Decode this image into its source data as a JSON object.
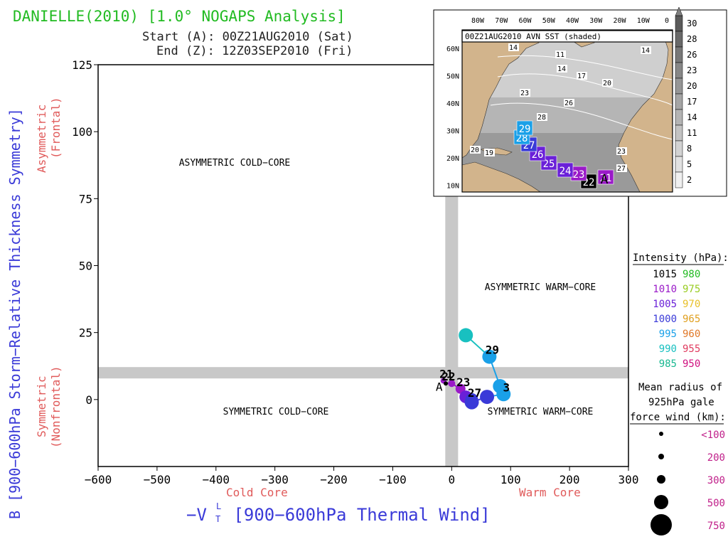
{
  "header": {
    "title": "DANIELLE(2010) [1.0° NOGAPS Analysis]",
    "start": "Start (A): 00Z21AUG2010 (Sat)",
    "end": "End (Z): 12Z03SEP2010 (Fri)"
  },
  "axes": {
    "xlabel": "−V",
    "xlabel_super": "L",
    "xlabel_sub": "T",
    "xlabel_rest": " [900−600hPa Thermal Wind]",
    "ylabel": "B [900−600hPa Storm−Relative Thickness Symmetry]",
    "x_left_note": "Cold Core",
    "x_right_note": "Warm Core",
    "y_top_note_1": "Asymmetric",
    "y_top_note_2": "(Frontal)",
    "y_bot_note_1": "Symmetric",
    "y_bot_note_2": "(Nonfrontal)"
  },
  "quadrants": {
    "asym_cold": "ASYMMETRIC COLD−CORE",
    "asym_warm": "ASYMMETRIC WARM−CORE",
    "sym_cold": "SYMMETRIC COLD−CORE",
    "sym_warm": "SYMMETRIC WARM−CORE"
  },
  "intensity_legend": {
    "title": "Intensity (hPa):",
    "rows": [
      [
        {
          "v": "1015",
          "c": "#000000"
        },
        {
          "v": "980",
          "c": "#22bb22"
        }
      ],
      [
        {
          "v": "1010",
          "c": "#9a1ac8"
        },
        {
          "v": "975",
          "c": "#99cc22"
        }
      ],
      [
        {
          "v": "1005",
          "c": "#6a20d8"
        },
        {
          "v": "970",
          "c": "#e8c028"
        }
      ],
      [
        {
          "v": "1000",
          "c": "#3a3ad8"
        },
        {
          "v": "965",
          "c": "#e0a020"
        }
      ],
      [
        {
          "v": "995",
          "c": "#1aa0e8"
        },
        {
          "v": "960",
          "c": "#e07828"
        }
      ],
      [
        {
          "v": "990",
          "c": "#18c0c0"
        },
        {
          "v": "955",
          "c": "#e03c60"
        }
      ],
      [
        {
          "v": "985",
          "c": "#18b890"
        },
        {
          "v": "950",
          "c": "#d01080"
        }
      ]
    ]
  },
  "radius_legend": {
    "title_1": "Mean radius of",
    "title_2": "925hPa gale",
    "title_3": "force wind (km):",
    "items": [
      {
        "label": "<100",
        "r": 3
      },
      {
        "label": "200",
        "r": 4
      },
      {
        "label": "300",
        "r": 6
      },
      {
        "label": "500",
        "r": 10
      },
      {
        "label": "750",
        "r": 15
      }
    ]
  },
  "inset": {
    "title": "00Z21AUG2010 AVN SST (shaded)",
    "lon_labels": [
      "80W",
      "70W",
      "60W",
      "50W",
      "40W",
      "30W",
      "20W",
      "10W",
      "0"
    ],
    "lat_labels": [
      "60N",
      "50N",
      "40N",
      "30N",
      "20N",
      "10N"
    ],
    "sst_labels": [
      "30",
      "28",
      "26",
      "23",
      "20",
      "17",
      "14",
      "11",
      "8",
      "5",
      "2"
    ],
    "contour_labels": [
      "14",
      "11",
      "14",
      "14",
      "17",
      "20",
      "23",
      "26",
      "28",
      "23",
      "20",
      "27",
      "19"
    ],
    "track": [
      {
        "day": "21",
        "c": "#9a1ac8"
      },
      {
        "day": "22",
        "c": "#000000"
      },
      {
        "day": "23",
        "c": "#9a1ac8"
      },
      {
        "day": "24",
        "c": "#6a20d8"
      },
      {
        "day": "25",
        "c": "#6a20d8"
      },
      {
        "day": "26",
        "c": "#6a20d8"
      },
      {
        "day": "27",
        "c": "#3a3ad8"
      },
      {
        "day": "28",
        "c": "#1aa0e8"
      },
      {
        "day": "29",
        "c": "#1aa0e8"
      }
    ],
    "start_marker": "A"
  },
  "chart_data": {
    "type": "scatter",
    "xlim": [
      -600,
      300
    ],
    "ylim": [
      -25,
      125
    ],
    "xticks": [
      -600,
      -500,
      -400,
      -300,
      -200,
      -100,
      0,
      100,
      200,
      300
    ],
    "yticks": [
      0,
      25,
      50,
      75,
      100,
      125
    ],
    "xtick_labels": [
      "−600",
      "−500",
      "−400",
      "−300",
      "−200",
      "−100",
      "0",
      "100",
      "200",
      "300"
    ],
    "ytick_labels": [
      "0",
      "25",
      "50",
      "75",
      "100",
      "125"
    ],
    "threshold_x": 0,
    "threshold_y": 10,
    "track": [
      {
        "x": -14,
        "y": 7,
        "c": "#9a1ac8",
        "r": 4,
        "label": "21",
        "marker": "A"
      },
      {
        "x": -10,
        "y": 6,
        "c": "#000000",
        "r": 3,
        "label": "22"
      },
      {
        "x": 0,
        "y": 6,
        "c": "#9a1ac8",
        "r": 5,
        "label": ""
      },
      {
        "x": 15,
        "y": 4,
        "c": "#9a1ac8",
        "r": 7,
        "label": "23"
      },
      {
        "x": 24,
        "y": 1,
        "c": "#6a20d8",
        "r": 9,
        "label": ""
      },
      {
        "x": 34,
        "y": 0,
        "c": "#3a3ad8",
        "r": 9,
        "label": "27"
      },
      {
        "x": 34,
        "y": -1,
        "c": "#3a3ad8",
        "r": 10,
        "label": ""
      },
      {
        "x": 60,
        "y": 1,
        "c": "#3a3ad8",
        "r": 10,
        "label": ""
      },
      {
        "x": 88,
        "y": 2,
        "c": "#1aa0e8",
        "r": 10,
        "label": "3"
      },
      {
        "x": 82,
        "y": 5,
        "c": "#1aa0e8",
        "r": 10,
        "label": ""
      },
      {
        "x": 64,
        "y": 16,
        "c": "#1aa0e8",
        "r": 10,
        "label": "29"
      },
      {
        "x": 24,
        "y": 24,
        "c": "#18c0c0",
        "r": 10,
        "label": ""
      }
    ]
  }
}
